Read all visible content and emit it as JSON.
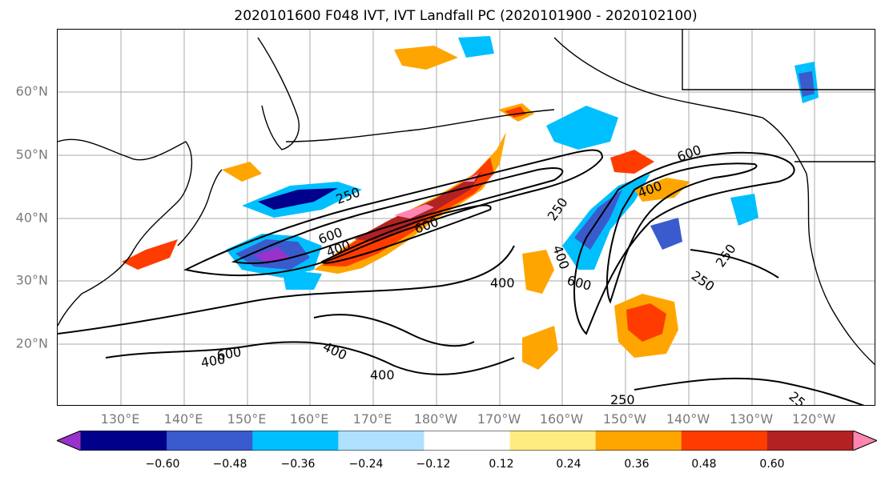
{
  "title": "2020101600 F048 IVT, IVT Landfall PC (2020101900 - 2020102100)",
  "lat_labels": [
    "60°N",
    "50°N",
    "40°N",
    "30°N",
    "20°N"
  ],
  "lon_labels": [
    "130°E",
    "140°E",
    "150°E",
    "160°E",
    "170°E",
    "180°W",
    "170°W",
    "160°W",
    "150°W",
    "140°W",
    "130°W",
    "120°W"
  ],
  "contour_labels": [
    "250",
    "600",
    "400",
    "600",
    "250",
    "400",
    "600",
    "400",
    "600",
    "400",
    "400",
    "250",
    "250",
    "400",
    "600",
    "400",
    "250",
    "25"
  ],
  "colorbar": {
    "ticks": [
      "−0.60",
      "−0.48",
      "−0.36",
      "−0.24",
      "−0.12",
      "0.12",
      "0.24",
      "0.36",
      "0.48",
      "0.60"
    ],
    "colors": [
      "#9932cc",
      "#00008b",
      "#3a5bcd",
      "#00bfff",
      "#b0e0ff",
      "#ffffff",
      "#ffec80",
      "#ffa500",
      "#ff3c00",
      "#b22222",
      "#ff85b2"
    ]
  }
}
